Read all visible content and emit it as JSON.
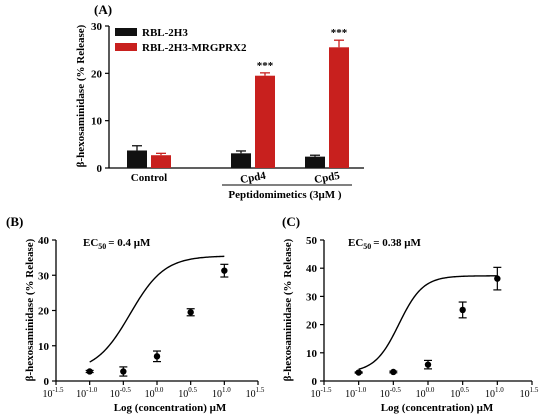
{
  "panel_labels": [
    "(A)",
    "(B)",
    "(C)"
  ],
  "colors": {
    "black_bar": "#111111",
    "red_bar": "#c8201e",
    "axis": "#000000"
  },
  "chart_data": [
    {
      "type": "bar",
      "panel": "(A)",
      "ylabel": "β-hexosaminidase (% Release)",
      "ylim": [
        0,
        30
      ],
      "yticks": [
        "0",
        "10",
        "20",
        "30"
      ],
      "categories": [
        "Control",
        "Cpd4",
        "Cpd5"
      ],
      "group_label": "Peptidomimetics (3μM )",
      "legend": {
        "position": "top-left",
        "entries": [
          "RBL-2H3",
          "RBL-2H3-MRGPRX2"
        ]
      },
      "series": [
        {
          "name": "RBL-2H3",
          "color": "#111111",
          "values": [
            3.7,
            3.1,
            2.4
          ],
          "errors": [
            1.0,
            0.5,
            0.3
          ]
        },
        {
          "name": "RBL-2H3-MRGPRX2",
          "color": "#c8201e",
          "values": [
            2.7,
            19.5,
            25.5
          ],
          "errors": [
            0.4,
            0.6,
            1.5
          ]
        }
      ],
      "annotations": [
        {
          "category": "Cpd4",
          "text": "***"
        },
        {
          "category": "Cpd5",
          "text": "***"
        }
      ]
    },
    {
      "type": "scatter",
      "panel": "(B)",
      "ylabel": "β-hexosaminidase (% Release)",
      "xlabel": "Log (concentration) μM",
      "annotation": "= 0.4 μM",
      "ec_label": "EC",
      "ec_sub": "50",
      "xlim": [
        -1.5,
        1.5
      ],
      "ylim": [
        0,
        40
      ],
      "yticks": [
        "0",
        "10",
        "20",
        "30",
        "40"
      ],
      "xticks": [
        "-1.5",
        "-1.0",
        "-0.5",
        "0.0",
        "0.5",
        "1.0",
        "1.5"
      ],
      "x": [
        -1.0,
        -0.5,
        0.0,
        0.5,
        1.0
      ],
      "y": [
        2.7,
        2.7,
        7.0,
        19.5,
        31.3
      ],
      "errors": [
        0.3,
        1.3,
        1.5,
        1.0,
        1.8
      ],
      "curve": {
        "bottom": 2.5,
        "top": 35.5,
        "log_ec50": -0.4,
        "hill": 1.7
      }
    },
    {
      "type": "scatter",
      "panel": "(C)",
      "ylabel": "β-hexosaminidase (% Release)",
      "xlabel": "Log (concentration) μM",
      "annotation": "= 0.38 μM",
      "ec_label": "EC",
      "ec_sub": "50",
      "xlim": [
        -1.5,
        1.5
      ],
      "ylim": [
        0,
        50
      ],
      "yticks": [
        "0",
        "10",
        "20",
        "30",
        "40",
        "50"
      ],
      "xticks": [
        "-1.5",
        "-1.0",
        "-0.5",
        "0.0",
        "0.5",
        "1.0",
        "1.5"
      ],
      "x": [
        -1.0,
        -0.5,
        0.0,
        0.5,
        1.0
      ],
      "y": [
        3.0,
        3.2,
        5.8,
        25.2,
        36.3
      ],
      "errors": [
        0.2,
        0.3,
        1.5,
        2.8,
        4.0
      ],
      "curve": {
        "bottom": 3.0,
        "top": 37.3,
        "log_ec50": -0.42,
        "hill": 2.5
      }
    }
  ]
}
